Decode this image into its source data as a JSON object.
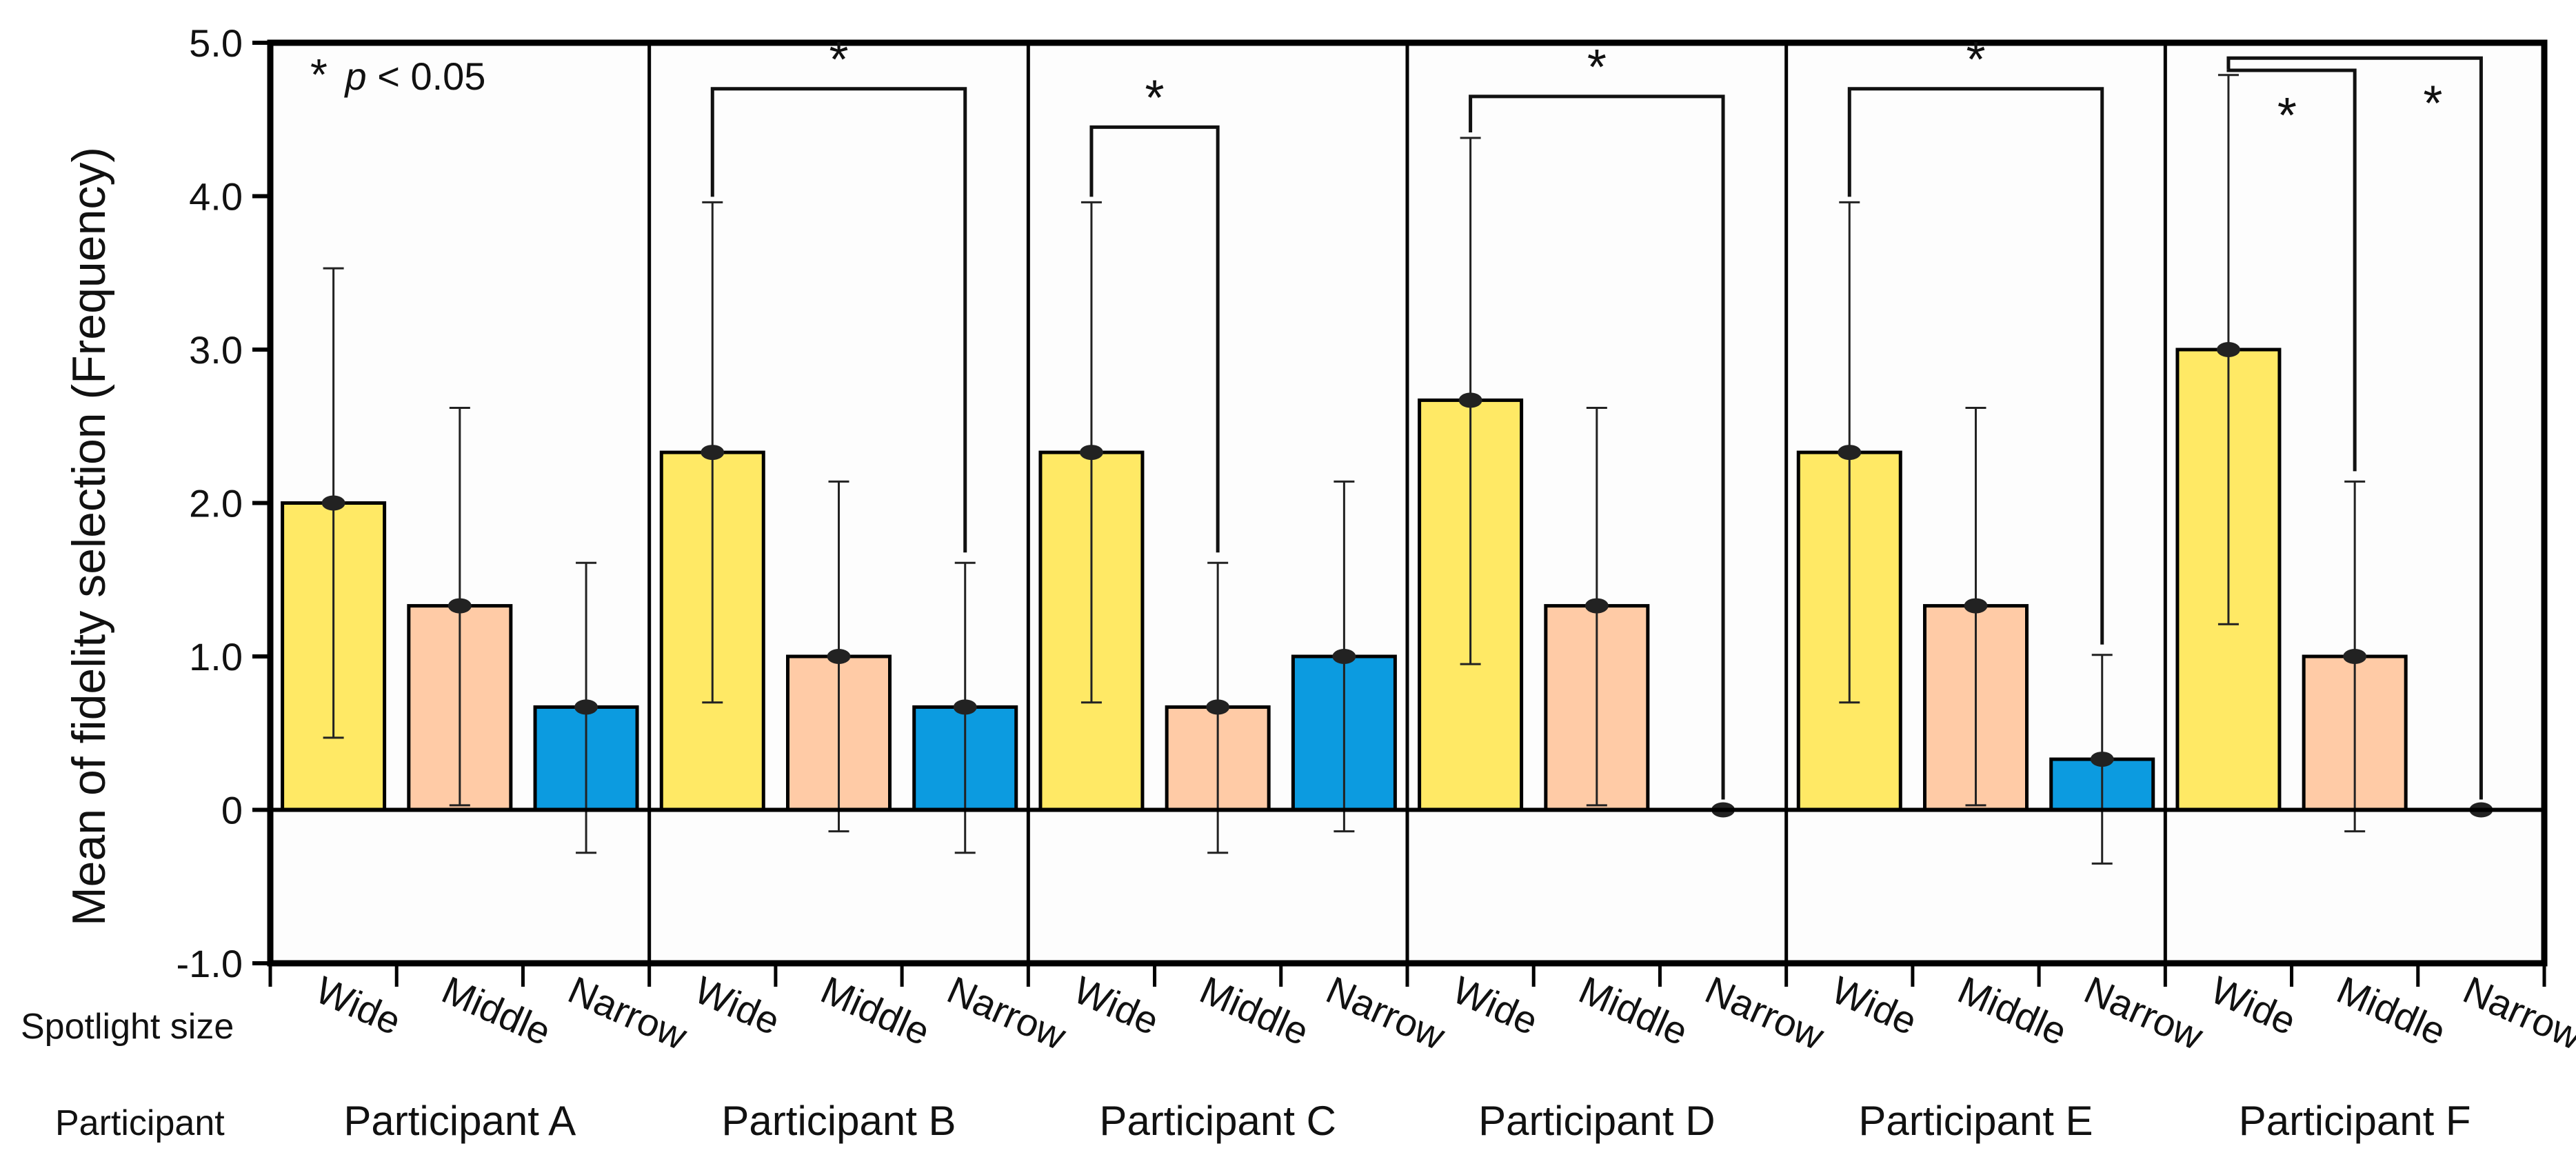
{
  "chart_data": {
    "type": "bar",
    "ylabel": "Mean of fidelity selection (Frequency)",
    "ylim": [
      -1.0,
      5.0
    ],
    "yticks": [
      {
        "value": 5.0,
        "label": "5.0"
      },
      {
        "value": 4.0,
        "label": "4.0"
      },
      {
        "value": 3.0,
        "label": "3.0"
      },
      {
        "value": 2.0,
        "label": "2.0"
      },
      {
        "value": 1.0,
        "label": "1.0"
      },
      {
        "value": 0,
        "label": "0"
      },
      {
        "value": -1.0,
        "label": "-1.0"
      }
    ],
    "annotation": {
      "star": "*",
      "p_italic": "p",
      "rest": " < 0.05"
    },
    "row_labels": {
      "spotlight": "Spotlight size",
      "participant": "Participant"
    },
    "categories": [
      "Wide",
      "Middle",
      "Narrow"
    ],
    "colors": {
      "Wide": "#FFE965",
      "Middle": "#FFCBA6",
      "Narrow": "#0C9BE0"
    },
    "groups": [
      {
        "name": "Participant A",
        "bars": [
          {
            "category": "Wide",
            "value": 2.0,
            "err_low": 0.47,
            "err_high": 3.53
          },
          {
            "category": "Middle",
            "value": 1.33,
            "err_low": 0.03,
            "err_high": 2.62
          },
          {
            "category": "Narrow",
            "value": 0.67,
            "err_low": -0.28,
            "err_high": 1.61
          }
        ],
        "significance": []
      },
      {
        "name": "Participant B",
        "bars": [
          {
            "category": "Wide",
            "value": 2.33,
            "err_low": 0.7,
            "err_high": 3.96
          },
          {
            "category": "Middle",
            "value": 1.0,
            "err_low": -0.14,
            "err_high": 2.14
          },
          {
            "category": "Narrow",
            "value": 0.67,
            "err_low": -0.28,
            "err_high": 1.61
          }
        ],
        "significance": [
          {
            "from": 0,
            "to": 2,
            "level": 4.7,
            "label": "*"
          }
        ]
      },
      {
        "name": "Participant C",
        "bars": [
          {
            "category": "Wide",
            "value": 2.33,
            "err_low": 0.7,
            "err_high": 3.96
          },
          {
            "category": "Middle",
            "value": 0.67,
            "err_low": -0.28,
            "err_high": 1.61
          },
          {
            "category": "Narrow",
            "value": 1.0,
            "err_low": -0.14,
            "err_high": 2.14
          }
        ],
        "significance": [
          {
            "from": 0,
            "to": 1,
            "level": 4.45,
            "label": "*"
          }
        ]
      },
      {
        "name": "Participant D",
        "bars": [
          {
            "category": "Wide",
            "value": 2.67,
            "err_low": 0.95,
            "err_high": 4.38
          },
          {
            "category": "Middle",
            "value": 1.33,
            "err_low": 0.03,
            "err_high": 2.62
          },
          {
            "category": "Narrow",
            "value": 0,
            "err_low": 0,
            "err_high": 0
          }
        ],
        "significance": [
          {
            "from": 0,
            "to": 2,
            "level": 4.65,
            "label": "*"
          }
        ]
      },
      {
        "name": "Participant E",
        "bars": [
          {
            "category": "Wide",
            "value": 2.33,
            "err_low": 0.7,
            "err_high": 3.96
          },
          {
            "category": "Middle",
            "value": 1.33,
            "err_low": 0.03,
            "err_high": 2.62
          },
          {
            "category": "Narrow",
            "value": 0.33,
            "err_low": -0.35,
            "err_high": 1.01
          }
        ],
        "significance": [
          {
            "from": 0,
            "to": 2,
            "level": 4.7,
            "label": "*"
          }
        ]
      },
      {
        "name": "Participant F",
        "bars": [
          {
            "category": "Wide",
            "value": 3.0,
            "err_low": 1.21,
            "err_high": 4.79
          },
          {
            "category": "Middle",
            "value": 1.0,
            "err_low": -0.14,
            "err_high": 2.14
          },
          {
            "category": "Narrow",
            "value": 0,
            "err_low": 0,
            "err_high": 0
          }
        ],
        "significance": [
          {
            "from": 0,
            "to": 1,
            "level": 4.82,
            "label": "*"
          },
          {
            "from": 0,
            "to": 2,
            "level": 4.9,
            "label": "*"
          }
        ]
      }
    ]
  }
}
